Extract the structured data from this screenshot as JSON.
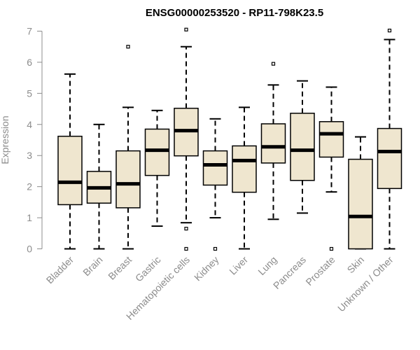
{
  "chart_data": {
    "type": "boxplot",
    "title": "ENSG00000253520 - RP11-798K23.5",
    "ylabel": "Expression",
    "xlabel": "",
    "ylim": [
      0,
      7
    ],
    "yticks": [
      "0",
      "1",
      "2",
      "3",
      "4",
      "5",
      "6",
      "7"
    ],
    "grid": false,
    "colors": {
      "box_fill": "#efe6cf",
      "stroke": "#000000",
      "axis_text": "#8c8c8c"
    },
    "categories": [
      "Bladder",
      "Brain",
      "Breast",
      "Gastric",
      "Hematopoietic cells",
      "Kidney",
      "Liver",
      "Lung",
      "Pancreas",
      "Prostate",
      "Skin",
      "Unknown / Other"
    ],
    "boxes": [
      {
        "whisker_low": 0.0,
        "q1": 1.42,
        "median": 2.14,
        "q3": 3.62,
        "whisker_high": 5.62,
        "outliers": []
      },
      {
        "whisker_low": 0.0,
        "q1": 1.47,
        "median": 1.96,
        "q3": 2.49,
        "whisker_high": 4.0,
        "outliers": []
      },
      {
        "whisker_low": 0.0,
        "q1": 1.32,
        "median": 2.09,
        "q3": 3.15,
        "whisker_high": 4.55,
        "outliers": [
          6.5
        ]
      },
      {
        "whisker_low": 0.73,
        "q1": 2.36,
        "median": 3.17,
        "q3": 3.85,
        "whisker_high": 4.45,
        "outliers": []
      },
      {
        "whisker_low": 0.84,
        "q1": 2.99,
        "median": 3.8,
        "q3": 4.52,
        "whisker_high": 6.5,
        "outliers": [
          0.65,
          0.0,
          7.05
        ]
      },
      {
        "whisker_low": 1.0,
        "q1": 2.05,
        "median": 2.7,
        "q3": 3.15,
        "whisker_high": 4.18,
        "outliers": [
          0.0
        ]
      },
      {
        "whisker_low": 0.0,
        "q1": 1.82,
        "median": 2.84,
        "q3": 3.31,
        "whisker_high": 4.55,
        "outliers": []
      },
      {
        "whisker_low": 0.95,
        "q1": 2.76,
        "median": 3.28,
        "q3": 4.02,
        "whisker_high": 5.27,
        "outliers": [
          5.95
        ]
      },
      {
        "whisker_low": 1.15,
        "q1": 2.2,
        "median": 3.17,
        "q3": 4.36,
        "whisker_high": 5.4,
        "outliers": []
      },
      {
        "whisker_low": 1.83,
        "q1": 2.95,
        "median": 3.7,
        "q3": 4.09,
        "whisker_high": 5.2,
        "outliers": [
          0.0
        ]
      },
      {
        "whisker_low": 0.0,
        "q1": 0.0,
        "median": 1.04,
        "q3": 2.88,
        "whisker_high": 3.6,
        "outliers": []
      },
      {
        "whisker_low": 0.0,
        "q1": 1.94,
        "median": 3.13,
        "q3": 3.87,
        "whisker_high": 6.73,
        "outliers": [
          7.02
        ]
      }
    ]
  }
}
